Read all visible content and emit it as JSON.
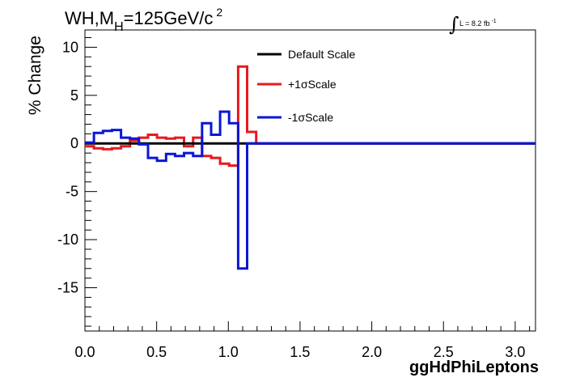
{
  "chart_data": {
    "type": "line",
    "title": "WH,M",
    "title_sub": "H",
    "title_rest": "=125GeV/c",
    "title_sup": "2",
    "lumi_label": "L = 8.2 fb",
    "lumi_sup": "-1",
    "xlabel": "ggHdPhiLeptons",
    "ylabel": "% Change",
    "xlim": [
      0,
      3.1416
    ],
    "ylim": [
      -19.5,
      11.8
    ],
    "x_ticks": [
      "0.0",
      "0.5",
      "1.0",
      "1.5",
      "2.0",
      "2.5",
      "3.0"
    ],
    "x_tick_values": [
      0,
      0.5,
      1.0,
      1.5,
      2.0,
      2.5,
      3.0
    ],
    "y_ticks": [
      "10",
      "5",
      "0",
      "-5",
      "-10",
      "-15"
    ],
    "y_tick_values": [
      10,
      5,
      0,
      -5,
      -10,
      -15
    ],
    "legend_position": "top-center",
    "bin_edges": [
      0,
      0.0628,
      0.1257,
      0.1885,
      0.2513,
      0.3142,
      0.377,
      0.4398,
      0.5027,
      0.5655,
      0.6283,
      0.6912,
      0.754,
      0.8168,
      0.8796,
      0.9425,
      1.0053,
      1.0681,
      1.131,
      1.1938,
      1.2566,
      3.1416
    ],
    "series": [
      {
        "name": "Default Scale",
        "color": "#000000",
        "values": [
          0,
          0,
          0,
          0,
          0,
          0,
          0,
          0,
          0,
          0,
          0,
          0,
          0,
          0,
          0,
          0,
          0,
          0,
          0,
          0,
          0
        ]
      },
      {
        "name": "+1σScale",
        "color": "#e8191d",
        "values": [
          -0.3,
          -0.5,
          -0.6,
          -0.5,
          -0.3,
          0.3,
          0.6,
          0.9,
          0.6,
          0.5,
          0.6,
          -0.3,
          0.6,
          -1.3,
          -1.5,
          -2.1,
          -2.3,
          8.0,
          1.2,
          0,
          0
        ]
      },
      {
        "name": "-1σScale",
        "color": "#0a16d6",
        "values": [
          0.1,
          1.1,
          1.3,
          1.4,
          0.6,
          0.5,
          -0.1,
          -1.5,
          -1.8,
          -1.1,
          -1.3,
          -1.0,
          -1.3,
          2.1,
          0.9,
          3.3,
          2.1,
          -13.0,
          0.0,
          0,
          0
        ]
      }
    ]
  }
}
